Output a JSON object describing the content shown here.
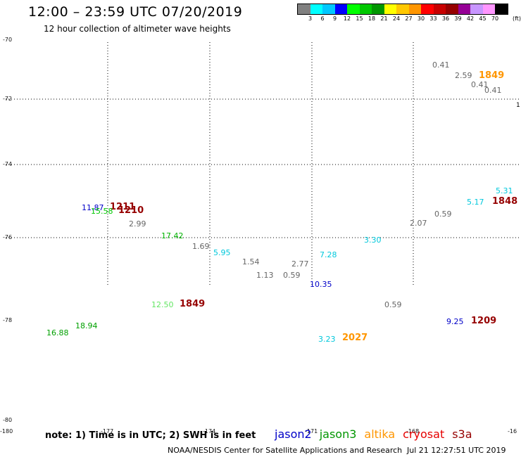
{
  "header": {
    "title": "12:00 – 23:59 UTC 07/20/2019",
    "subtitle": "12 hour collection of altimeter wave heights"
  },
  "colorbar": {
    "colors": [
      "#808080",
      "#00ffff",
      "#00c8ff",
      "#0000ff",
      "#00ff00",
      "#00c800",
      "#009600",
      "#ffff00",
      "#ffc800",
      "#ff9600",
      "#ff0000",
      "#c80000",
      "#960000",
      "#960096",
      "#c896ff",
      "#ff96ff",
      "#000000"
    ],
    "labels": [
      "3",
      "6",
      "9",
      "12",
      "15",
      "18",
      "21",
      "24",
      "27",
      "30",
      "33",
      "36",
      "39",
      "42",
      "45",
      "70"
    ],
    "unit": "(ft)"
  },
  "map": {
    "lat_labels": [
      "-70",
      "-72",
      "-74",
      "-76",
      "-78",
      "-80"
    ],
    "lon_labels": [
      "-180",
      "-177",
      "-174",
      "-171",
      "-168",
      "-16"
    ],
    "edge_fragment": "1"
  },
  "observations": [
    {
      "text": "0.41",
      "color": "#666666"
    },
    {
      "text": "2.59",
      "color": "#666666"
    },
    {
      "text": "1849",
      "color": "#ff9600",
      "bold": true
    },
    {
      "text": "0.41",
      "color": "#666666"
    },
    {
      "text": "0.41",
      "color": "#666666"
    },
    {
      "text": "5.31",
      "color": "#00c8dc"
    },
    {
      "text": "5.17",
      "color": "#00c8dc"
    },
    {
      "text": "1848",
      "color": "#960000",
      "bold": true
    },
    {
      "text": "0.59",
      "color": "#666666"
    },
    {
      "text": "2.07",
      "color": "#666666"
    },
    {
      "text": "3.30",
      "color": "#00c8dc"
    },
    {
      "text": "11.87",
      "color": "#0000c8"
    },
    {
      "text": "1211",
      "color": "#960000",
      "bold": true
    },
    {
      "text": "15.58",
      "color": "#00c800"
    },
    {
      "text": "1210",
      "color": "#960000",
      "bold": true
    },
    {
      "text": "2.99",
      "color": "#666666"
    },
    {
      "text": "17.42",
      "color": "#00b400"
    },
    {
      "text": "1.69",
      "color": "#666666"
    },
    {
      "text": "5.95",
      "color": "#00c8dc"
    },
    {
      "text": "1.54",
      "color": "#666666"
    },
    {
      "text": "2.77",
      "color": "#666666"
    },
    {
      "text": "7.28",
      "color": "#00c8dc"
    },
    {
      "text": "1.13",
      "color": "#666666"
    },
    {
      "text": "0.59",
      "color": "#666666"
    },
    {
      "text": "10.35",
      "color": "#0000c8"
    },
    {
      "text": "12.50",
      "color": "#64e664"
    },
    {
      "text": "1849",
      "color": "#960000",
      "bold": true
    },
    {
      "text": "0.59",
      "color": "#666666"
    },
    {
      "text": "9.25",
      "color": "#0000c8"
    },
    {
      "text": "1209",
      "color": "#960000",
      "bold": true
    },
    {
      "text": "18.94",
      "color": "#00a000"
    },
    {
      "text": "16.88",
      "color": "#00a000"
    },
    {
      "text": "3.23",
      "color": "#00c8dc"
    },
    {
      "text": "2027",
      "color": "#ff9600",
      "bold": true
    }
  ],
  "note": "note: 1) Time is in UTC; 2) SWH is in feet",
  "legend": [
    {
      "name": "jason2",
      "color": "#0000c8"
    },
    {
      "name": "jason3",
      "color": "#009600"
    },
    {
      "name": "altika",
      "color": "#ff9600"
    },
    {
      "name": "cryosat",
      "color": "#e60000"
    },
    {
      "name": "s3a",
      "color": "#960000"
    }
  ],
  "footer": {
    "credit": "NOAA/NESDIS Center for Satellite Applications and Research",
    "timestamp": "Jul 21 12:27:51 UTC 2019"
  }
}
